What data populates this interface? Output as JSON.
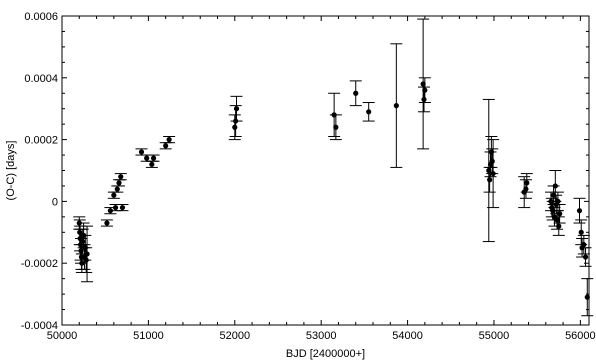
{
  "chart_data": {
    "type": "scatter",
    "xlabel": "BJD [2400000+]",
    "ylabel": "(O-C) [days]",
    "xlim": [
      50000,
      56100
    ],
    "ylim": [
      -0.0004,
      0.0006
    ],
    "xticks": [
      50000,
      51000,
      52000,
      53000,
      54000,
      55000,
      56000
    ],
    "xtick_labels": [
      "50000",
      "51000",
      "52000",
      "53000",
      "54000",
      "55000",
      "56000"
    ],
    "yticks": [
      -0.0004,
      -0.0002,
      0,
      0.0002,
      0.0004,
      0.0006
    ],
    "ytick_labels": [
      "-0.0004",
      "-0.0002",
      "0",
      "0.0002",
      "0.0004",
      "0.0006"
    ],
    "grid": false,
    "marker": "filled circle with vertical error bars",
    "points": [
      {
        "x": 50200,
        "y": -7e-05,
        "err": 2e-05
      },
      {
        "x": 50205,
        "y": -0.0001,
        "err": 4e-05
      },
      {
        "x": 50210,
        "y": -0.00012,
        "err": 4e-05
      },
      {
        "x": 50215,
        "y": -0.00014,
        "err": 5e-05
      },
      {
        "x": 50220,
        "y": -0.00016,
        "err": 4e-05
      },
      {
        "x": 50225,
        "y": -0.00018,
        "err": 4e-05
      },
      {
        "x": 50230,
        "y": -0.0002,
        "err": 3e-05
      },
      {
        "x": 50240,
        "y": -0.00013,
        "err": 4e-05
      },
      {
        "x": 50250,
        "y": -0.00011,
        "err": 4e-05
      },
      {
        "x": 50260,
        "y": -0.00018,
        "err": 4e-05
      },
      {
        "x": 50270,
        "y": -0.00015,
        "err": 4e-05
      },
      {
        "x": 50280,
        "y": -0.00019,
        "err": 4e-05
      },
      {
        "x": 50290,
        "y": -0.00017,
        "err": 9e-05
      },
      {
        "x": 50520,
        "y": -7e-05,
        "err": 1e-05
      },
      {
        "x": 50560,
        "y": -3e-05,
        "err": 1e-05
      },
      {
        "x": 50600,
        "y": 2e-05,
        "err": 1e-05
      },
      {
        "x": 50620,
        "y": -2e-05,
        "err": 1e-05
      },
      {
        "x": 50640,
        "y": 4e-05,
        "err": 1e-05
      },
      {
        "x": 50660,
        "y": 6e-05,
        "err": 1e-05
      },
      {
        "x": 50680,
        "y": 8e-05,
        "err": 1e-05
      },
      {
        "x": 50700,
        "y": -2e-05,
        "err": 1e-05
      },
      {
        "x": 50920,
        "y": 0.00016,
        "err": 1e-05
      },
      {
        "x": 50980,
        "y": 0.00014,
        "err": 1e-05
      },
      {
        "x": 51040,
        "y": 0.00012,
        "err": 1e-05
      },
      {
        "x": 51060,
        "y": 0.00014,
        "err": 1e-05
      },
      {
        "x": 51200,
        "y": 0.00018,
        "err": 1e-05
      },
      {
        "x": 51240,
        "y": 0.0002,
        "err": 1e-05
      },
      {
        "x": 52000,
        "y": 0.00024,
        "err": 4e-05
      },
      {
        "x": 52010,
        "y": 0.00026,
        "err": 5e-05
      },
      {
        "x": 52020,
        "y": 0.0003,
        "err": 4e-05
      },
      {
        "x": 53150,
        "y": 0.00028,
        "err": 7e-05
      },
      {
        "x": 53170,
        "y": 0.00024,
        "err": 4e-05
      },
      {
        "x": 53400,
        "y": 0.00035,
        "err": 4e-05
      },
      {
        "x": 53550,
        "y": 0.00029,
        "err": 3e-05
      },
      {
        "x": 53870,
        "y": 0.00031,
        "err": 0.0002
      },
      {
        "x": 54180,
        "y": 0.00038,
        "err": 0.00021
      },
      {
        "x": 54190,
        "y": 0.00033,
        "err": 4e-05
      },
      {
        "x": 54200,
        "y": 0.00036,
        "err": 4e-05
      },
      {
        "x": 54940,
        "y": 0.0001,
        "err": 0.00023
      },
      {
        "x": 54950,
        "y": 7e-05,
        "err": 4e-05
      },
      {
        "x": 54960,
        "y": 0.00012,
        "err": 4e-05
      },
      {
        "x": 54970,
        "y": 0.00016,
        "err": 5e-05
      },
      {
        "x": 54980,
        "y": 0.00013,
        "err": 4e-05
      },
      {
        "x": 54990,
        "y": 9e-05,
        "err": 0.00011
      },
      {
        "x": 55350,
        "y": 3e-05,
        "err": 5e-05
      },
      {
        "x": 55370,
        "y": 4e-05,
        "err": 3e-05
      },
      {
        "x": 55380,
        "y": 6e-05,
        "err": 3e-05
      },
      {
        "x": 55660,
        "y": 0.0,
        "err": 3e-05
      },
      {
        "x": 55670,
        "y": -2e-05,
        "err": 3e-05
      },
      {
        "x": 55680,
        "y": -3e-05,
        "err": 3e-05
      },
      {
        "x": 55690,
        "y": 2e-05,
        "err": 3e-05
      },
      {
        "x": 55700,
        "y": -5e-05,
        "err": 3e-05
      },
      {
        "x": 55710,
        "y": 5e-05,
        "err": 5e-05
      },
      {
        "x": 55720,
        "y": -1e-05,
        "err": 3e-05
      },
      {
        "x": 55730,
        "y": -6e-05,
        "err": 3e-05
      },
      {
        "x": 55740,
        "y": 0.0,
        "err": 3e-05
      },
      {
        "x": 55750,
        "y": -8e-05,
        "err": 3e-05
      },
      {
        "x": 55760,
        "y": -4e-05,
        "err": 3e-05
      },
      {
        "x": 55990,
        "y": -3e-05,
        "err": 4e-05
      },
      {
        "x": 56010,
        "y": -0.0001,
        "err": 4e-05
      },
      {
        "x": 56020,
        "y": -0.00015,
        "err": 3e-05
      },
      {
        "x": 56040,
        "y": -0.00014,
        "err": 3e-05
      },
      {
        "x": 56060,
        "y": -0.00018,
        "err": 3e-05
      },
      {
        "x": 56080,
        "y": -0.00031,
        "err": 6e-05
      }
    ]
  }
}
